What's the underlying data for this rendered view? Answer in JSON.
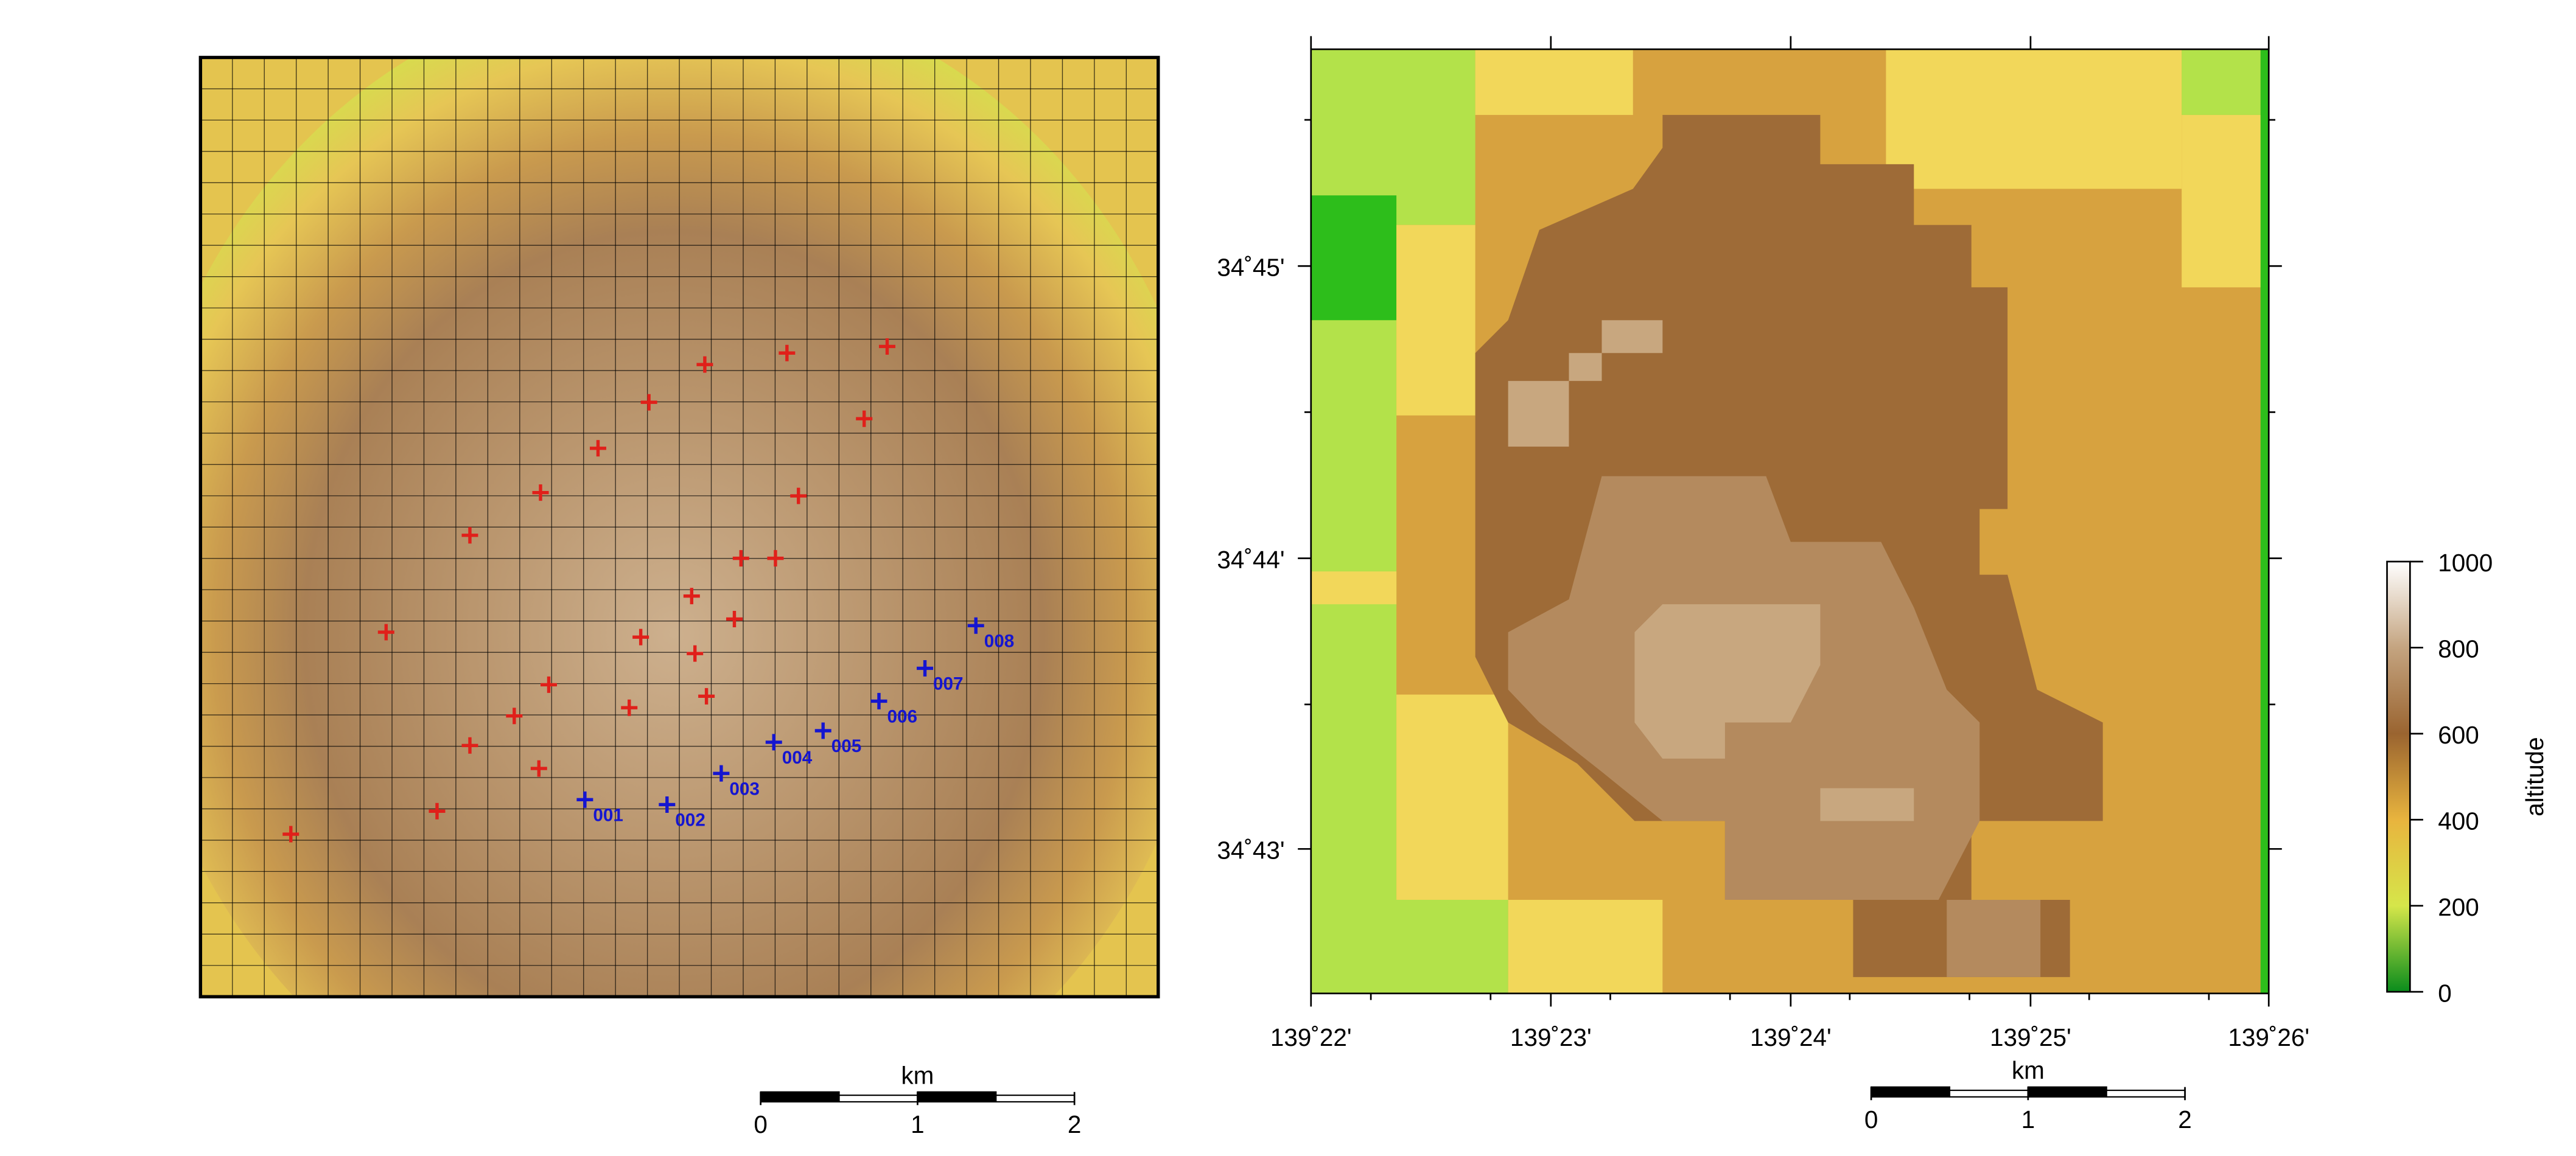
{
  "left_map": {
    "stations": [
      "001",
      "002",
      "003",
      "004",
      "005",
      "006",
      "007",
      "008"
    ],
    "scale_bar": {
      "unit": "km",
      "ticks": [
        0,
        1,
        2
      ]
    }
  },
  "right_map": {
    "lon_ticks": [
      "139˚22'",
      "139˚23'",
      "139˚24'",
      "139˚25'",
      "139˚26'"
    ],
    "lat_ticks": [
      "34˚45'",
      "34˚44'",
      "34˚43'"
    ],
    "scale_bar": {
      "unit": "km",
      "ticks": [
        0,
        1,
        2
      ]
    },
    "colorbar": {
      "label": "altitude",
      "lim": [
        0,
        1000
      ],
      "ticks": [
        0,
        200,
        400,
        600,
        800,
        1000
      ]
    }
  }
}
